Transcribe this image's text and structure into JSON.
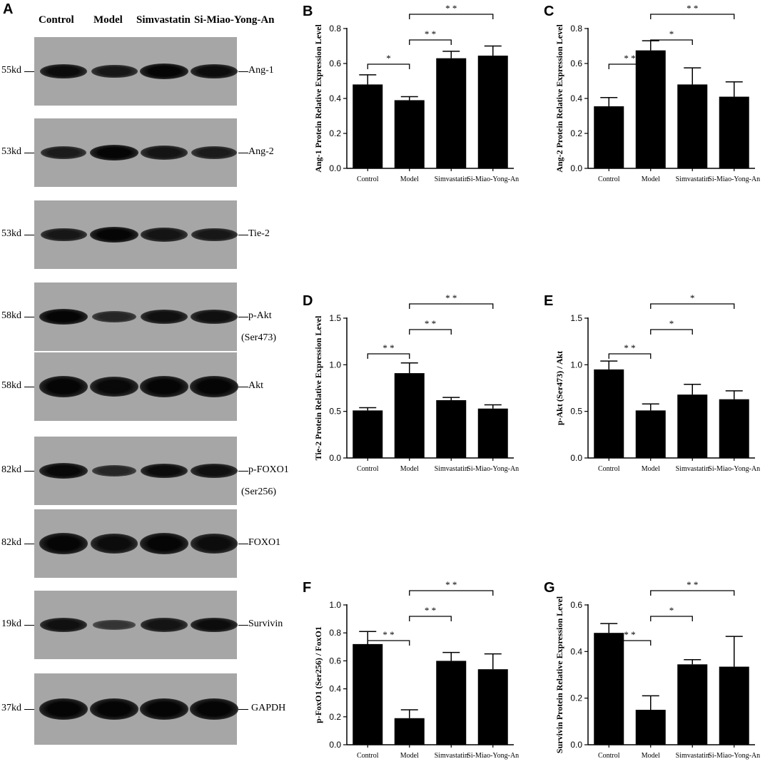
{
  "blots": {
    "panel_label": "A",
    "lanes": [
      "Control",
      "Model",
      "Simvastatin",
      "Si-Miao-Yong-An"
    ],
    "rows": [
      {
        "protein": "Ang-1",
        "kd": "55kd",
        "intensity": [
          0.9,
          0.75,
          1.0,
          0.9
        ]
      },
      {
        "protein": "Ang-2",
        "kd": "53kd",
        "intensity": [
          0.7,
          1.0,
          0.8,
          0.7
        ]
      },
      {
        "protein": "Tie-2",
        "kd": "53kd",
        "intensity": [
          0.75,
          1.0,
          0.8,
          0.75
        ]
      },
      {
        "protein": "p-Akt",
        "sub": "(Ser473)",
        "kd": "58kd",
        "intensity": [
          1.0,
          0.55,
          0.85,
          0.85
        ]
      },
      {
        "protein": "Akt",
        "kd": "58kd",
        "intensity": [
          1.0,
          0.95,
          1.0,
          1.0
        ]
      },
      {
        "protein": "p-FOXO1",
        "sub": "(Ser256)",
        "kd": "82kd",
        "intensity": [
          0.95,
          0.55,
          0.9,
          0.85
        ]
      },
      {
        "protein": "FOXO1",
        "kd": "82kd",
        "intensity": [
          1.0,
          0.9,
          1.0,
          0.9
        ]
      },
      {
        "protein": "Survivin",
        "kd": "19kd",
        "intensity": [
          0.85,
          0.35,
          0.8,
          0.9
        ]
      },
      {
        "protein": "GAPDH",
        "kd": "37kd",
        "intensity": [
          1.0,
          1.0,
          1.0,
          1.0
        ]
      }
    ]
  },
  "chart_data": [
    {
      "panel": "B",
      "type": "bar",
      "categories": [
        "Control",
        "Model",
        "Simvastatin",
        "Si-Miao-Yong-An"
      ],
      "values": [
        0.48,
        0.39,
        0.63,
        0.645
      ],
      "errors": [
        0.055,
        0.02,
        0.04,
        0.055
      ],
      "ylabel": "Ang-1 Protein Relative Expression Level",
      "ylim": [
        0,
        0.8
      ],
      "yticks": [
        "0.0",
        "0.2",
        "0.4",
        "0.6",
        "0.8"
      ],
      "ytick_values": [
        0,
        0.2,
        0.4,
        0.6,
        0.8
      ],
      "significance": [
        {
          "from": 0,
          "to": 1,
          "label": "*"
        },
        {
          "from": 1,
          "to": 2,
          "label": "* *"
        },
        {
          "from": 1,
          "to": 3,
          "label": "* *"
        }
      ]
    },
    {
      "panel": "C",
      "type": "bar",
      "categories": [
        "Control",
        "Model",
        "Simvastatin",
        "Si-Miao-Yong-An"
      ],
      "values": [
        0.355,
        0.675,
        0.48,
        0.41
      ],
      "errors": [
        0.05,
        0.055,
        0.095,
        0.085
      ],
      "ylabel": "Ang-2 Protein Relative Expression Level",
      "ylim": [
        0,
        0.8
      ],
      "yticks": [
        "0.0",
        "0.2",
        "0.4",
        "0.6",
        "0.8"
      ],
      "ytick_values": [
        0,
        0.2,
        0.4,
        0.6,
        0.8
      ],
      "significance": [
        {
          "from": 0,
          "to": 1,
          "label": "* *"
        },
        {
          "from": 1,
          "to": 2,
          "label": "*"
        },
        {
          "from": 1,
          "to": 3,
          "label": "* *"
        }
      ]
    },
    {
      "panel": "D",
      "type": "bar",
      "categories": [
        "Control",
        "Model",
        "Simvastatin",
        "Si-Miao-Yong-An"
      ],
      "values": [
        0.51,
        0.91,
        0.62,
        0.53
      ],
      "errors": [
        0.03,
        0.11,
        0.03,
        0.04
      ],
      "ylabel": "Tie-2 Protein Relative Expression Level",
      "ylim": [
        0,
        1.5
      ],
      "yticks": [
        "0.0",
        "0.5",
        "1.0",
        "1.5"
      ],
      "ytick_values": [
        0,
        0.5,
        1.0,
        1.5
      ],
      "significance": [
        {
          "from": 0,
          "to": 1,
          "label": "* *"
        },
        {
          "from": 1,
          "to": 2,
          "label": "* *"
        },
        {
          "from": 1,
          "to": 3,
          "label": "* *"
        }
      ]
    },
    {
      "panel": "E",
      "type": "bar",
      "categories": [
        "Control",
        "Model",
        "Simvastatin",
        "Si-Miao-Yong-An"
      ],
      "values": [
        0.95,
        0.51,
        0.68,
        0.63
      ],
      "errors": [
        0.09,
        0.07,
        0.11,
        0.09
      ],
      "ylabel": "p-Akt (Ser473) / Akt",
      "ylim": [
        0,
        1.5
      ],
      "yticks": [
        "0.0",
        "0.5",
        "1.0",
        "1.5"
      ],
      "ytick_values": [
        0,
        0.5,
        1.0,
        1.5
      ],
      "significance": [
        {
          "from": 0,
          "to": 1,
          "label": "* *"
        },
        {
          "from": 1,
          "to": 2,
          "label": "*"
        },
        {
          "from": 1,
          "to": 3,
          "label": "*"
        }
      ]
    },
    {
      "panel": "F",
      "type": "bar",
      "categories": [
        "Control",
        "Model",
        "Simvastatin",
        "Si-Miao-Yong-An"
      ],
      "values": [
        0.72,
        0.19,
        0.6,
        0.54
      ],
      "errors": [
        0.09,
        0.06,
        0.06,
        0.11
      ],
      "ylabel": "p-FoxO1 (Ser256) / FoxO1",
      "ylim": [
        0,
        1.0
      ],
      "yticks": [
        "0.0",
        "0.2",
        "0.4",
        "0.6",
        "0.8",
        "1.0"
      ],
      "ytick_values": [
        0,
        0.2,
        0.4,
        0.6,
        0.8,
        1.0
      ],
      "significance": [
        {
          "from": 0,
          "to": 1,
          "label": "* *"
        },
        {
          "from": 1,
          "to": 2,
          "label": "* *"
        },
        {
          "from": 1,
          "to": 3,
          "label": "* *"
        }
      ]
    },
    {
      "panel": "G",
      "type": "bar",
      "categories": [
        "Control",
        "Model",
        "Simvastatin",
        "Si-Miao-Yong-An"
      ],
      "values": [
        0.48,
        0.15,
        0.345,
        0.335
      ],
      "errors": [
        0.04,
        0.06,
        0.02,
        0.13
      ],
      "ylabel": "Survivin Protein Relative Expression Level",
      "ylim": [
        0,
        0.6
      ],
      "yticks": [
        "0.0",
        "0.2",
        "0.4",
        "0.6"
      ],
      "ytick_values": [
        0,
        0.2,
        0.4,
        0.6
      ],
      "significance": [
        {
          "from": 0,
          "to": 1,
          "label": "* *"
        },
        {
          "from": 1,
          "to": 2,
          "label": "*"
        },
        {
          "from": 1,
          "to": 3,
          "label": "* *"
        }
      ]
    }
  ]
}
